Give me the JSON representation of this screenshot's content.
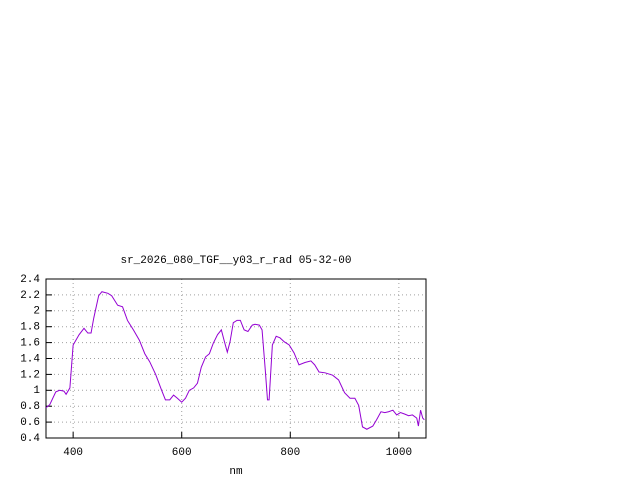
{
  "chart_data": {
    "type": "line",
    "title": "sr_2026_080_TGF__y03_r_rad 05-32-00",
    "x_label": "nm",
    "xlim": [
      350,
      1050
    ],
    "xticks": [
      400,
      600,
      800,
      1000
    ],
    "ylim": [
      0.4,
      2.4
    ],
    "yticks": [
      0.4,
      0.6,
      0.8,
      1,
      1.2,
      1.4,
      1.6,
      1.8,
      2,
      2.2,
      2.4
    ],
    "grid": true,
    "x": [
      350,
      357,
      368,
      375,
      383,
      387,
      394,
      400,
      411,
      420,
      427,
      433,
      438,
      447,
      453,
      464,
      471,
      482,
      491,
      500,
      511,
      522,
      532,
      541,
      552,
      563,
      570,
      578,
      585,
      592,
      600,
      607,
      614,
      622,
      629,
      636,
      644,
      651,
      658,
      666,
      673,
      678,
      684,
      689,
      695,
      702,
      708,
      715,
      722,
      730,
      735,
      743,
      748,
      754,
      758,
      761,
      767,
      774,
      781,
      789,
      798,
      807,
      816,
      827,
      838,
      845,
      853,
      864,
      878,
      889,
      900,
      910,
      919,
      926,
      933,
      941,
      952,
      959,
      967,
      974,
      981,
      989,
      996,
      1003,
      1011,
      1018,
      1025,
      1033,
      1036,
      1040,
      1044,
      1047
    ],
    "series": [
      {
        "color": "#9400d3",
        "values": [
          0.78,
          0.82,
          0.98,
          1.0,
          0.99,
          0.95,
          1.03,
          1.57,
          1.7,
          1.78,
          1.72,
          1.72,
          1.91,
          2.19,
          2.24,
          2.22,
          2.19,
          2.07,
          2.05,
          1.88,
          1.76,
          1.63,
          1.46,
          1.36,
          1.2,
          1.0,
          0.88,
          0.88,
          0.94,
          0.9,
          0.85,
          0.9,
          1.0,
          1.03,
          1.09,
          1.29,
          1.42,
          1.46,
          1.59,
          1.7,
          1.76,
          1.63,
          1.48,
          1.61,
          1.85,
          1.88,
          1.88,
          1.76,
          1.74,
          1.82,
          1.83,
          1.82,
          1.76,
          1.25,
          0.88,
          0.88,
          1.57,
          1.68,
          1.66,
          1.61,
          1.57,
          1.47,
          1.32,
          1.35,
          1.37,
          1.32,
          1.23,
          1.22,
          1.19,
          1.13,
          0.97,
          0.9,
          0.9,
          0.81,
          0.54,
          0.51,
          0.55,
          0.63,
          0.73,
          0.72,
          0.73,
          0.75,
          0.69,
          0.72,
          0.7,
          0.68,
          0.69,
          0.65,
          0.55,
          0.75,
          0.65,
          0.63
        ]
      }
    ]
  }
}
